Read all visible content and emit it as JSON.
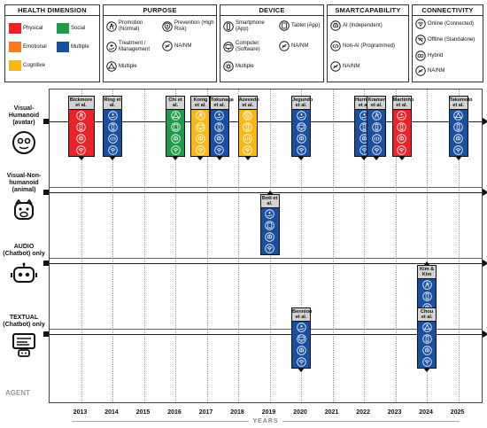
{
  "legend": {
    "health": {
      "title": "HEALTH DIMENSION",
      "items": [
        {
          "label": "Physical",
          "color": "#e8242a"
        },
        {
          "label": "Social",
          "color": "#1f9a48"
        },
        {
          "label": "Emotional",
          "color": "#f47b20"
        },
        {
          "label": "Multiple",
          "color": "#1a4fa0"
        },
        {
          "label": "Cognitive",
          "color": "#f6b818"
        }
      ]
    },
    "purpose": {
      "title": "PURPOSE",
      "items": [
        {
          "label": "Promotion (Normal)",
          "icon": "person-heart-icon"
        },
        {
          "label": "Prevention (High Risk)",
          "icon": "shield-person-icon"
        },
        {
          "label": "Treatment / Management",
          "icon": "hand-cross-icon"
        },
        {
          "label": "NA/NM",
          "icon": "slashed-circle-icon"
        },
        {
          "label": "Multiple",
          "icon": "triangle-nodes-icon"
        }
      ]
    },
    "device": {
      "title": "DEVICE",
      "items": [
        {
          "label": "Smartphone (App)",
          "icon": "smartphone-icon"
        },
        {
          "label": "Tablet (App)",
          "icon": "tablet-icon"
        },
        {
          "label": "Computer (Software)",
          "icon": "computer-icon"
        },
        {
          "label": "NA/NM",
          "icon": "slashed-circle-icon"
        },
        {
          "label": "Multiple",
          "icon": "gear-multiple-icon"
        }
      ]
    },
    "smart": {
      "title": "SMARTCAPABILITY",
      "items": [
        {
          "label": "AI (Independent)",
          "icon": "ai-brain-icon"
        },
        {
          "label": "Non-AI (Programmed)",
          "icon": "code-icon"
        },
        {
          "label": "NA/NM",
          "icon": "slashed-circle-icon"
        }
      ]
    },
    "connectivity": {
      "title": "CONNECTIVITY",
      "items": [
        {
          "label": "Online (Connected)",
          "icon": "wifi-icon"
        },
        {
          "label": "Offline (Standalone)",
          "icon": "wifi-off-icon"
        },
        {
          "label": "Hybrid",
          "icon": "hybrid-icon"
        },
        {
          "label": "NA/NM",
          "icon": "slashed-circle-icon"
        }
      ]
    }
  },
  "agents": [
    {
      "label": "Visual-Humanoid (avatar)",
      "icon": "humanoid-face-icon"
    },
    {
      "label": "Visual-Non-humanoid (animal)",
      "icon": "animal-face-icon"
    },
    {
      "label": "AUDIO (Chatbot) only",
      "icon": "robot-head-icon"
    },
    {
      "label": "TEXTUAL (Chatbot) only",
      "icon": "text-chat-icon"
    }
  ],
  "agent_footer": "AGENT",
  "x_axis": {
    "label": "YEARS",
    "ticks": [
      "2013",
      "2014",
      "2015",
      "2016",
      "2017",
      "2018",
      "2019",
      "2020",
      "2021",
      "2022",
      "2023",
      "2024",
      "2025"
    ]
  },
  "studies": [
    {
      "name": "Bickmore et al.",
      "year": 2013,
      "lane": 0,
      "color": "#e8242a",
      "icons": [
        "person-heart-icon",
        "smartphone-icon",
        "ai-brain-icon",
        "wifi-icon"
      ],
      "width": 2
    },
    {
      "name": "Ring et al.",
      "year": 2014,
      "lane": 0,
      "color": "#1a4fa0",
      "icons": [
        "hand-cross-icon",
        "smartphone-icon",
        "code-icon",
        "wifi-icon"
      ]
    },
    {
      "name": "Chi et al.",
      "year": 2016,
      "lane": 0,
      "color": "#1f9a48",
      "icons": [
        "triangle-nodes-icon",
        "tablet-icon",
        "ai-brain-icon",
        "wifi-icon"
      ]
    },
    {
      "name": "Konig et al.",
      "year": 2016.8,
      "lane": 0,
      "color": "#f6b818",
      "icons": [
        "person-heart-icon",
        "computer-icon",
        "ai-brain-icon",
        "wifi-icon"
      ]
    },
    {
      "name": "Tokunaga et al.",
      "year": 2017.4,
      "lane": 0,
      "color": "#1a4fa0",
      "icons": [
        "hand-cross-icon",
        "smartphone-icon",
        "ai-brain-icon",
        "wifi-icon"
      ]
    },
    {
      "name": "Azevedo et al.",
      "year": 2018.3,
      "lane": 0,
      "color": "#f6b818",
      "icons": [
        "shield-person-icon",
        "smartphone-icon",
        "code-icon",
        "wifi-icon"
      ]
    },
    {
      "name": "Jegundo et al.",
      "year": 2020,
      "lane": 0,
      "color": "#1a4fa0",
      "icons": [
        "hand-cross-icon",
        "computer-icon",
        "ai-brain-icon",
        "wifi-icon"
      ]
    },
    {
      "name": "Hurmuz et al.",
      "year": 2022,
      "lane": 0,
      "color": "#1a4fa0",
      "icons": [
        "hand-cross-icon",
        "smartphone-icon",
        "ai-brain-icon",
        "wifi-icon"
      ]
    },
    {
      "name": "Kramer et al.",
      "year": 2022.4,
      "lane": 0,
      "color": "#1a4fa0",
      "icons": [
        "person-heart-icon",
        "smartphone-icon",
        "code-icon",
        "wifi-icon"
      ]
    },
    {
      "name": "Martinho et al.",
      "year": 2023.2,
      "lane": 0,
      "color": "#e8242a",
      "icons": [
        "hand-cross-icon",
        "smartphone-icon",
        "ai-brain-icon",
        "wifi-icon"
      ]
    },
    {
      "name": "Takemoto et al.",
      "year": 2025,
      "lane": 0,
      "color": "#1a4fa0",
      "icons": [
        "triangle-nodes-icon",
        "smartphone-icon",
        "ai-brain-icon",
        "wifi-icon"
      ]
    },
    {
      "name": "Bott et al.",
      "year": 2019,
      "lane": 1,
      "color": "#1a4fa0",
      "icons": [
        "hand-cross-icon",
        "tablet-icon",
        "ai-brain-icon",
        "wifi-icon"
      ],
      "up": true
    },
    {
      "name": "Kim & Kim",
      "year": 2024,
      "lane": 2,
      "color": "#1a4fa0",
      "icons": [
        "person-heart-icon",
        "smartphone-icon",
        "ai-brain-icon",
        "wifi-icon"
      ],
      "up": true
    },
    {
      "name": "Bennion et al.",
      "year": 2020,
      "lane": 3,
      "color": "#1a4fa0",
      "icons": [
        "hand-cross-icon",
        "computer-icon",
        "ai-brain-icon",
        "wifi-icon"
      ]
    },
    {
      "name": "Chou et al.",
      "year": 2024,
      "lane": 3,
      "color": "#1a4fa0",
      "icons": [
        "triangle-nodes-icon",
        "smartphone-icon",
        "ai-brain-icon",
        "wifi-icon"
      ]
    }
  ]
}
